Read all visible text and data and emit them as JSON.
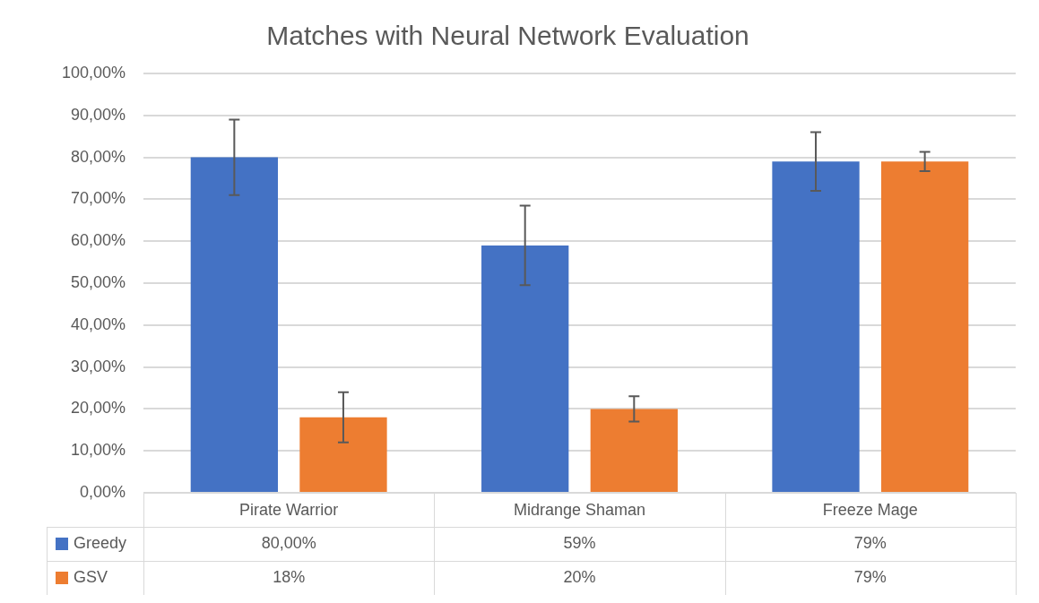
{
  "chart_data": {
    "type": "bar",
    "title": "Matches with Neural Network Evaluation",
    "categories": [
      "Pirate Warrior",
      "Midrange Shaman",
      "Freeze Mage"
    ],
    "series": [
      {
        "name": "Greedy",
        "color": "#4472c4",
        "values": [
          80,
          59,
          79
        ],
        "errors": [
          9,
          9.5,
          7
        ],
        "value_labels": [
          "80,00%",
          "59%",
          "79%"
        ]
      },
      {
        "name": "GSV",
        "color": "#ed7d31",
        "values": [
          18,
          20,
          79
        ],
        "errors": [
          6,
          3,
          2.3
        ],
        "value_labels": [
          "18%",
          "20%",
          "79%"
        ]
      }
    ],
    "ylim": [
      0,
      100
    ],
    "yticks": [
      {
        "value": 0,
        "label": "0,00%"
      },
      {
        "value": 10,
        "label": "10,00%"
      },
      {
        "value": 20,
        "label": "20,00%"
      },
      {
        "value": 30,
        "label": "30,00%"
      },
      {
        "value": 40,
        "label": "40,00%"
      },
      {
        "value": 50,
        "label": "50,00%"
      },
      {
        "value": 60,
        "label": "60,00%"
      },
      {
        "value": 70,
        "label": "70,00%"
      },
      {
        "value": 80,
        "label": "80,00%"
      },
      {
        "value": 90,
        "label": "90,00%"
      },
      {
        "value": 100,
        "label": "100,00%"
      }
    ],
    "grid": "y",
    "legend": "bottom"
  }
}
